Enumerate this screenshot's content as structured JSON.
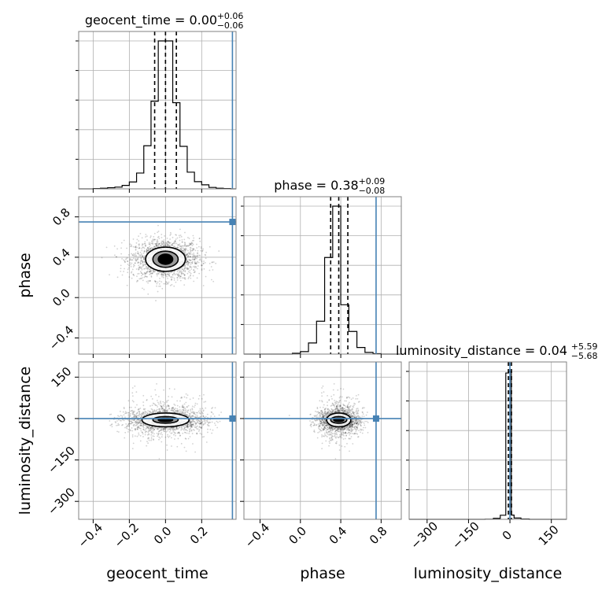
{
  "chart_data": {
    "type": "corner",
    "parameters": [
      "geocent_time",
      "phase",
      "luminosity_distance"
    ],
    "truth_color": "#4682b4",
    "truths": {
      "geocent_time": 0.37,
      "phase": 0.75,
      "luminosity_distance": 0
    },
    "titles": [
      {
        "param": "geocent_time",
        "text": "geocent_time = 0.00",
        "sup": "+0.06",
        "sub": "−0.06"
      },
      {
        "param": "phase",
        "text": "phase = 0.38",
        "sup": "+0.09",
        "sub": "−0.08"
      },
      {
        "param": "luminosity_distance",
        "text": "luminosity_distance = 0.04",
        "sup": "+5.59",
        "sub": "−5.68"
      }
    ],
    "axes": {
      "geocent_time": {
        "label": "geocent_time",
        "range": [
          -0.48,
          0.39
        ],
        "ticks": [
          -0.4,
          -0.2,
          0.0,
          0.2
        ],
        "tick_labels": [
          "−0.4",
          "−0.2",
          "0.0",
          "0.2"
        ]
      },
      "phase": {
        "label": "phase",
        "range": [
          -0.56,
          1.0
        ],
        "ticks": [
          -0.4,
          0.0,
          0.4,
          0.8
        ],
        "tick_labels": [
          "−0.4",
          "0.0",
          "0.4",
          "0.8"
        ]
      },
      "luminosity_distance": {
        "label": "luminosity_distance",
        "range": [
          -365,
          205
        ],
        "ticks": [
          -300,
          -150,
          0,
          150
        ],
        "tick_labels": [
          "−300",
          "−150",
          "0",
          "150"
        ]
      }
    },
    "marginals": {
      "geocent_time": {
        "bin_edges": [
          -0.48,
          -0.44,
          -0.4,
          -0.36,
          -0.32,
          -0.28,
          -0.24,
          -0.2,
          -0.16,
          -0.12,
          -0.08,
          -0.04,
          0.0,
          0.04,
          0.08,
          0.12,
          0.16,
          0.2,
          0.24,
          0.28,
          0.32,
          0.36,
          0.39
        ],
        "counts": [
          0,
          0,
          1,
          2,
          4,
          6,
          12,
          24,
          55,
          150,
          305,
          515,
          515,
          300,
          148,
          58,
          25,
          14,
          5,
          2,
          1,
          0
        ],
        "quantiles": [
          -0.06,
          0.0,
          0.06
        ]
      },
      "phase": {
        "bin_edges": [
          -0.56,
          -0.48,
          -0.4,
          -0.32,
          -0.24,
          -0.16,
          -0.08,
          0.0,
          0.08,
          0.16,
          0.24,
          0.32,
          0.4,
          0.48,
          0.56,
          0.64,
          0.72,
          0.8,
          0.88,
          0.96,
          1.0
        ],
        "counts": [
          0,
          0,
          0,
          0,
          0,
          0,
          2,
          6,
          27,
          80,
          235,
          360,
          120,
          55,
          16,
          4,
          1,
          0,
          0,
          0
        ],
        "quantiles": [
          0.3,
          0.38,
          0.47
        ]
      },
      "luminosity_distance": {
        "bin_edges": [
          -365,
          -90,
          -60,
          -35,
          -15,
          -5,
          5,
          15,
          40,
          70,
          100,
          205
        ],
        "counts": [
          0,
          1,
          6,
          25,
          900,
          910,
          26,
          8,
          2,
          0,
          0
        ],
        "quantiles": [
          -5.64,
          0.04,
          5.63
        ]
      }
    },
    "joint_contours": {
      "phase_vs_geocent_time": {
        "center": [
          0.0,
          0.38
        ],
        "levels": [
          {
            "sx": 0.04,
            "sy": 0.05
          },
          {
            "sx": 0.07,
            "sy": 0.08
          },
          {
            "sx": 0.11,
            "sy": 0.12
          }
        ]
      },
      "luminosity_distance_vs_geocent_time": {
        "center": [
          0.0,
          -5
        ],
        "levels": [
          {
            "sx": 0.04,
            "sy": 6
          },
          {
            "sx": 0.07,
            "sy": 12
          },
          {
            "sx": 0.13,
            "sy": 25
          }
        ]
      },
      "luminosity_distance_vs_phase": {
        "center": [
          0.38,
          -5
        ],
        "levels": [
          {
            "sx": 0.05,
            "sy": 6
          },
          {
            "sx": 0.08,
            "sy": 12
          },
          {
            "sx": 0.12,
            "sy": 25
          }
        ]
      }
    },
    "grid": true
  }
}
